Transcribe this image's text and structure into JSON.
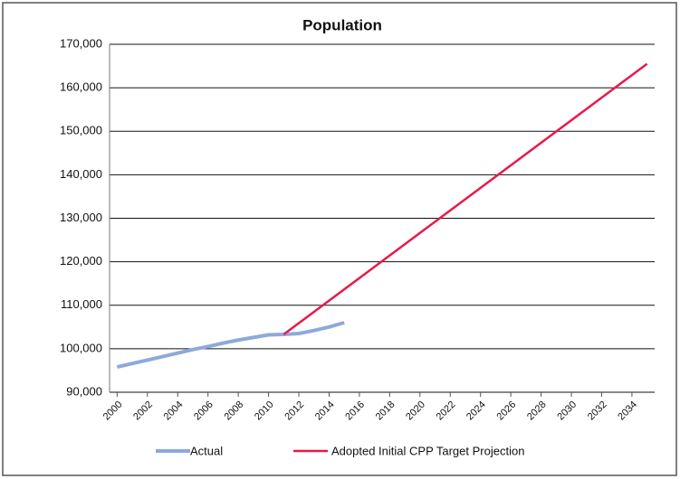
{
  "chart_data": {
    "type": "line",
    "title": "Population",
    "series": [
      {
        "name": "Actual",
        "color": "#8ea9db",
        "x": [
          2000,
          2001,
          2002,
          2003,
          2004,
          2005,
          2006,
          2007,
          2008,
          2009,
          2010,
          2011,
          2012,
          2013,
          2014,
          2015
        ],
        "values": [
          95800,
          96600,
          97400,
          98200,
          99000,
          99800,
          100500,
          101300,
          102000,
          102600,
          103200,
          103300,
          103500,
          104200,
          105000,
          106000
        ]
      },
      {
        "name": "Adopted Initial CPP Target Projection",
        "color": "#e8194b",
        "x": [
          2011,
          2035
        ],
        "values": [
          103300,
          165500
        ]
      }
    ],
    "xlim": [
      1999.5,
      2035.5
    ],
    "xticks": [
      2000,
      2002,
      2004,
      2006,
      2008,
      2010,
      2012,
      2014,
      2016,
      2018,
      2020,
      2022,
      2024,
      2026,
      2028,
      2030,
      2032,
      2034
    ],
    "ylim": [
      90000,
      170000
    ],
    "yticks": [
      {
        "value": 90000,
        "label": "90,000"
      },
      {
        "value": 100000,
        "label": "100,000"
      },
      {
        "value": 110000,
        "label": "110,000"
      },
      {
        "value": 120000,
        "label": "120,000"
      },
      {
        "value": 130000,
        "label": "130,000"
      },
      {
        "value": 140000,
        "label": "140,000"
      },
      {
        "value": 150000,
        "label": "150,000"
      },
      {
        "value": 160000,
        "label": "160,000"
      },
      {
        "value": 170000,
        "label": "170,000"
      }
    ],
    "grid": true,
    "legend": "bottom"
  }
}
